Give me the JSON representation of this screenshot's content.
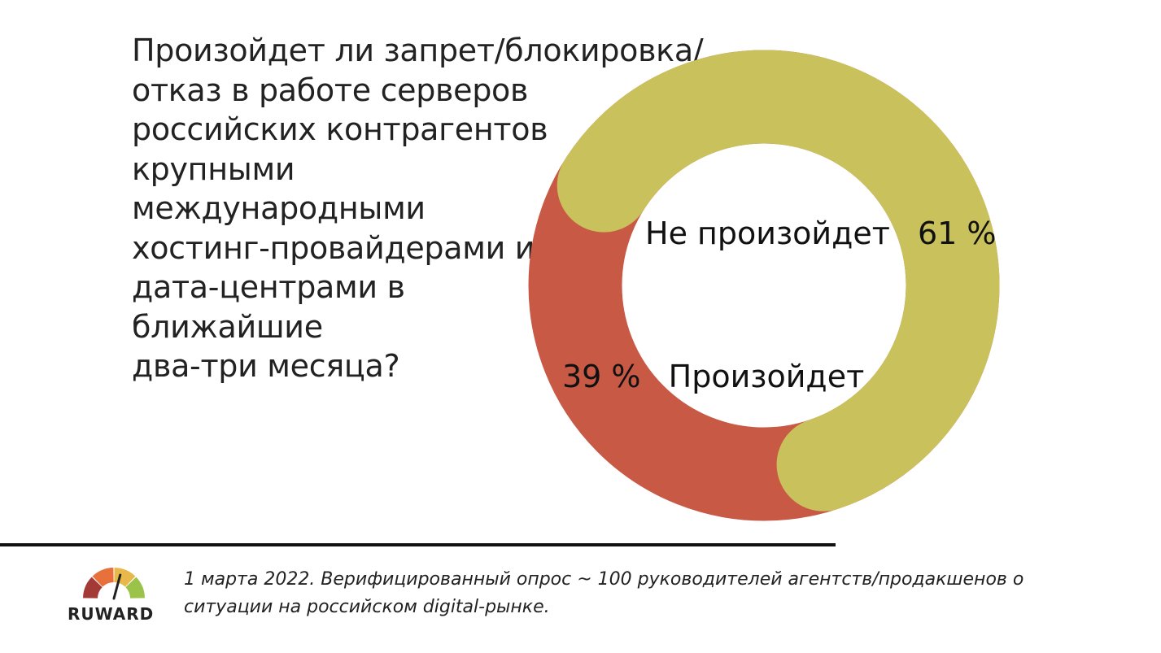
{
  "question_lines": [
    "Произойдет ли запрет/блокировка/",
    "отказ в работе серверов",
    "российских контрагентов",
    "крупными",
    "международными",
    "хостинг-провайдерами и",
    "дата-центрами в",
    "ближайшие",
    "два-три месяца?"
  ],
  "chart_data": {
    "type": "pie",
    "variant": "donut",
    "title": "",
    "slices": [
      {
        "label": "Не произойдет",
        "value": 61,
        "display": "61 %",
        "color": "#C9C25C"
      },
      {
        "label": "Произойдет",
        "value": 39,
        "display": "39 %",
        "color": "#C85A45"
      }
    ]
  },
  "footnote_lines": [
    "1 марта 2022. Верифицированный опрос ~ 100 руководителей агентств/продакшенов о",
    "ситуации на российском digital-рынке."
  ],
  "logo": {
    "text": "RUWARD",
    "icon": "gauge-icon",
    "colors": [
      "#A43A35",
      "#E8703A",
      "#E8B84A",
      "#9BC34A"
    ]
  }
}
